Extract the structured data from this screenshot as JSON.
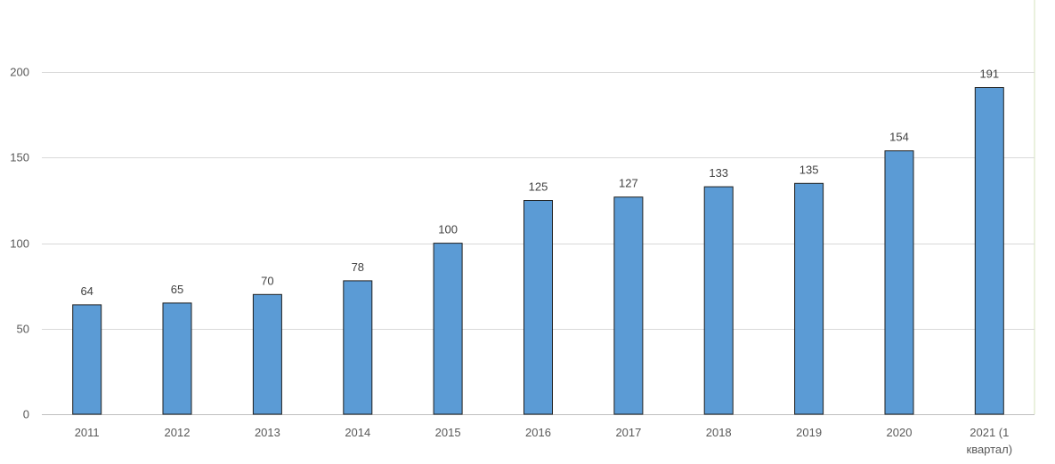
{
  "chart_data": {
    "type": "bar",
    "categories": [
      "2011",
      "2012",
      "2013",
      "2014",
      "2015",
      "2016",
      "2017",
      "2018",
      "2019",
      "2020",
      "2021 (1 квартал)"
    ],
    "category_lines": [
      [
        "2011"
      ],
      [
        "2012"
      ],
      [
        "2013"
      ],
      [
        "2014"
      ],
      [
        "2015"
      ],
      [
        "2016"
      ],
      [
        "2017"
      ],
      [
        "2018"
      ],
      [
        "2019"
      ],
      [
        "2020"
      ],
      [
        "2021 (1",
        "квартал)"
      ]
    ],
    "values": [
      64,
      65,
      70,
      78,
      100,
      125,
      127,
      133,
      135,
      154,
      191
    ],
    "yticks": [
      0,
      50,
      100,
      150,
      200
    ],
    "ylim": [
      0,
      240
    ],
    "grid": true,
    "bar_color": "#5b9bd5",
    "bar_border_color": "#1f1f1f",
    "title": "",
    "xlabel": "",
    "ylabel": ""
  }
}
